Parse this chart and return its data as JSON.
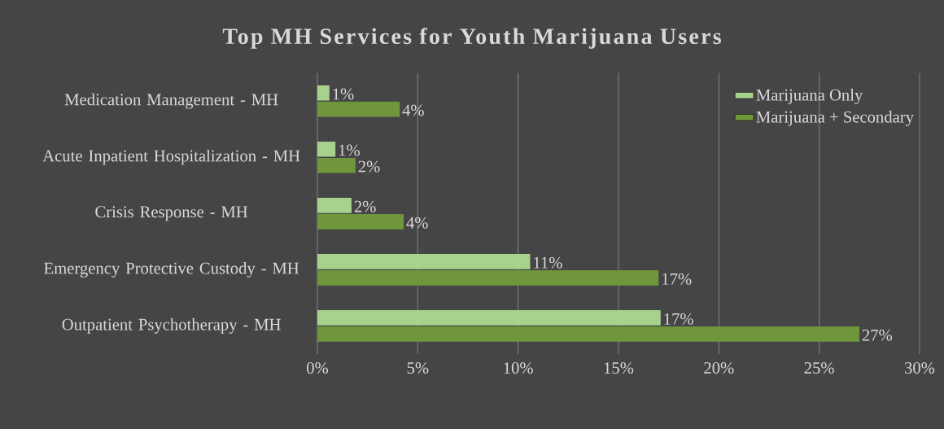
{
  "chart_data": {
    "type": "bar",
    "orientation": "horizontal",
    "title": "Top MH Services for Youth Marijuana Users",
    "categories": [
      "Medication Management - MH",
      "Acute Inpatient Hospitalization - MH",
      "Crisis Response - MH",
      "Emergency Protective Custody - MH",
      "Outpatient Psychotherapy - MH"
    ],
    "series": [
      {
        "name": "Marijuana Only",
        "color": "#a9d18e",
        "values": [
          0.6,
          0.9,
          1.7,
          10.6,
          17.1
        ],
        "value_labels": [
          "1%",
          "1%",
          "2%",
          "11%",
          "17%"
        ]
      },
      {
        "name": "Marijuana + Secondary",
        "color": "#70963c",
        "values": [
          4.1,
          1.9,
          4.3,
          17.0,
          27
        ],
        "value_labels": [
          "4%",
          "2%",
          "4%",
          "17%",
          "27%"
        ]
      }
    ],
    "xlim": [
      0,
      30
    ],
    "xticks": [
      {
        "value": 0,
        "label": "0%"
      },
      {
        "value": 5,
        "label": "5%"
      },
      {
        "value": 10,
        "label": "10%"
      },
      {
        "value": 15,
        "label": "15%"
      },
      {
        "value": 20,
        "label": "20%"
      },
      {
        "value": 25,
        "label": "25%"
      },
      {
        "value": 30,
        "label": "30%"
      }
    ],
    "grid": "x",
    "legend": "top right"
  }
}
